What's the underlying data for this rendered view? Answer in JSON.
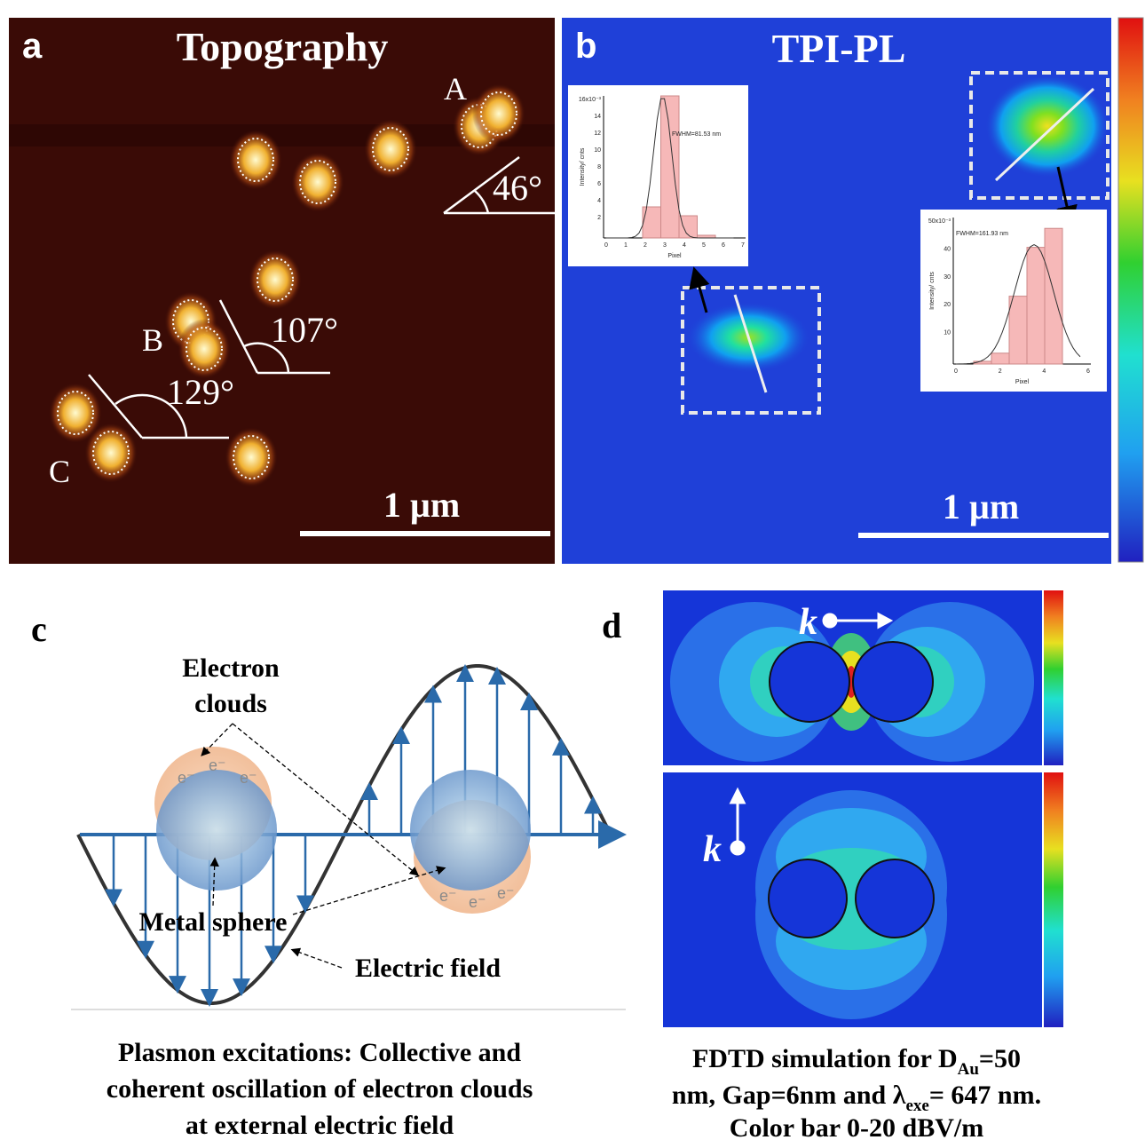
{
  "panel_a": {
    "label": "a",
    "title": "Topography",
    "particle_labels": [
      "A",
      "B",
      "C"
    ],
    "angles": [
      "46°",
      "107°",
      "129°"
    ],
    "scale_bar": "1 µm"
  },
  "panel_b": {
    "label": "b",
    "title": "TPI-PL",
    "scale_bar": "1 µm",
    "inset_1": {
      "annotation": "FWHM=81.53 nm",
      "y_label": "Intensity/ cnts",
      "x_label": "Pixel",
      "yticks": [
        "16x10⁻³",
        14,
        12,
        10,
        8,
        6,
        4,
        2
      ],
      "xticks": [
        0,
        1,
        2,
        3,
        4,
        5,
        6,
        7
      ]
    },
    "inset_2": {
      "annotation": "FWHM=161.93 nm",
      "y_label": "Intensity/ cnts",
      "x_label": "Pixel",
      "yticks": [
        "50x10⁻³",
        40,
        30,
        20,
        10
      ],
      "xticks": [
        0,
        2,
        4,
        6
      ]
    }
  },
  "panel_c": {
    "label": "c",
    "electron_clouds": [
      "Electron",
      "clouds"
    ],
    "electron": "e⁻",
    "metal_sphere": "Metal sphere",
    "electric_field": "Electric field",
    "caption": [
      "Plasmon excitations: Collective and",
      "coherent oscillation of electron clouds",
      "at external electric field"
    ]
  },
  "panel_d": {
    "label": "d",
    "wave_vector": "k",
    "caption": {
      "line_1": [
        "FDTD simulation for D",
        "Au",
        "=50"
      ],
      "line_2": [
        "nm, Gap=6nm and λ",
        "exe",
        "= 647 nm."
      ],
      "line_3": "Color bar 0-20 dBV/m"
    }
  }
}
